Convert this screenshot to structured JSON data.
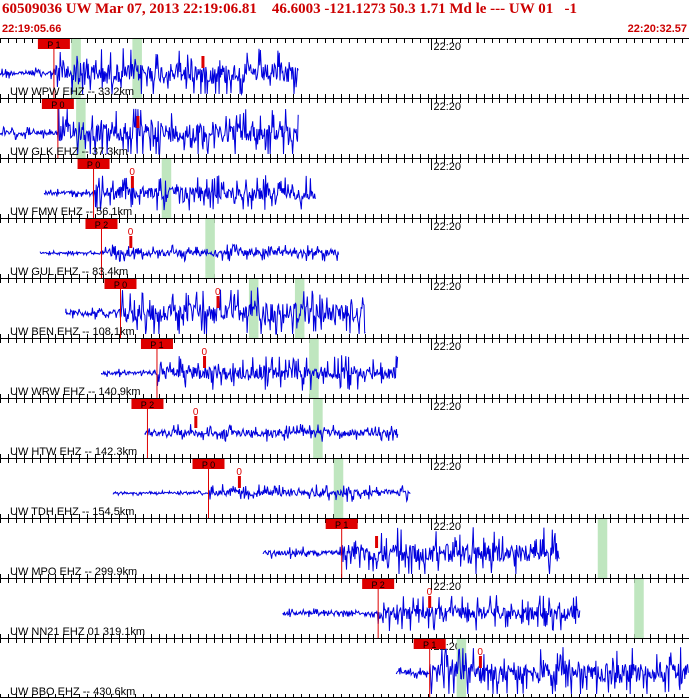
{
  "header": {
    "title": "60509036 UW Mar 07, 2013 22:19:06.81    46.6003 -121.1273 50.3 1.71 Md le --- UW 01   -1",
    "start_time": "22:19:05.66",
    "end_time": "22:20:32.57",
    "colors": {
      "header_text": "#cc0000",
      "trace": "#0000dd",
      "pick": "#dd0000",
      "window": "#bfe6bf",
      "axis": "#000000"
    }
  },
  "chart_data": {
    "type": "line",
    "title": "60509036 UW Mar 07, 2013 22:19:06.81    46.6003 -121.1273 50.3 1.71 Md le --- UW 01   -1",
    "x_range": [
      "22:19:05.66",
      "22:20:32.57"
    ],
    "x_range_seconds": [
      0,
      86.91
    ],
    "time_marker": {
      "label": "22:20",
      "t": 54.34
    },
    "tick_interval_s": 1,
    "grid": false,
    "series": [
      {
        "name": "UW WPW EHZ -- 33.2km",
        "trace_start": 0.0,
        "trace_end": 37.7,
        "amplitude": "clipped",
        "pick_label": "P 1",
        "pick_t": 6.8,
        "coda_t": 25.6,
        "coda_label": "",
        "window_t": [
          9.0,
          10.2,
          16.7,
          17.9
        ]
      },
      {
        "name": "UW GLK EHZ -- 37.3km",
        "trace_start": 0.0,
        "trace_end": 37.7,
        "amplitude": "clipped",
        "pick_label": "P 0",
        "pick_t": 7.3,
        "coda_t": 17.4,
        "coda_label": "",
        "window_t": [
          9.6,
          10.8
        ]
      },
      {
        "name": "UW FMW EHZ -- 56.1km",
        "trace_start": 5.6,
        "trace_end": 39.8,
        "amplitude": "high",
        "pick_label": "P 0",
        "pick_t": 11.8,
        "coda_t": 16.7,
        "coda_label": "0",
        "window_t": [
          20.4,
          21.6
        ]
      },
      {
        "name": "UW GUL EHZ -- 83.4km",
        "trace_start": 5.1,
        "trace_end": 42.8,
        "amplitude": "medium",
        "pick_label": "P 2",
        "pick_t": 12.8,
        "coda_t": 16.5,
        "coda_label": "0",
        "window_t": [
          25.9,
          27.1
        ]
      },
      {
        "name": "UW BEN EHZ -- 108.1km",
        "trace_start": 8.3,
        "trace_end": 46.1,
        "amplitude": "clipped",
        "pick_label": "P 0",
        "pick_t": 15.2,
        "coda_t": 27.5,
        "coda_label": "0",
        "window_t": [
          31.4,
          32.6,
          37.2,
          38.4
        ]
      },
      {
        "name": "UW WRW EHZ -- 140.9km",
        "trace_start": 12.8,
        "trace_end": 50.2,
        "amplitude": "high",
        "pick_label": "P 1",
        "pick_t": 19.8,
        "coda_t": 25.8,
        "coda_label": "0",
        "window_t": [
          39.0,
          40.2
        ]
      },
      {
        "name": "UW HTW EHZ -- 142.3km",
        "trace_start": 18.3,
        "trace_end": 50.2,
        "amplitude": "medium",
        "pick_label": "P 2",
        "pick_t": 18.6,
        "coda_t": 24.7,
        "coda_label": "0",
        "window_t": [
          39.5,
          40.7
        ]
      },
      {
        "name": "UW TDH EHZ -- 154.5km",
        "trace_start": 14.3,
        "trace_end": 51.8,
        "amplitude": "medium",
        "pick_label": "P 0",
        "pick_t": 26.3,
        "coda_t": 30.2,
        "coda_label": "0",
        "window_t": [
          42.1,
          43.3
        ]
      },
      {
        "name": "UW MPO EHZ -- 299.9km",
        "trace_start": 33.2,
        "trace_end": 70.6,
        "amplitude": "clipped",
        "pick_label": "P 1",
        "pick_t": 43.1,
        "coda_t": 47.5,
        "coda_label": "",
        "window_t": [
          75.4,
          76.6
        ]
      },
      {
        "name": "UW NN21 EHZ 01 319.1km",
        "trace_start": 35.7,
        "trace_end": 73.2,
        "amplitude": "high",
        "pick_label": "P 2",
        "pick_t": 47.7,
        "coda_t": 54.2,
        "coda_label": "0",
        "window_t": [
          80.0,
          81.2
        ]
      },
      {
        "name": "UW BBO EHZ -- 430.6km",
        "trace_start": 50.0,
        "trace_end": 86.9,
        "amplitude": "clipped",
        "pick_label": "P 1",
        "pick_t": 54.2,
        "coda_t": 60.6,
        "coda_label": "0",
        "window_t": [
          57.6,
          58.8
        ]
      }
    ]
  }
}
